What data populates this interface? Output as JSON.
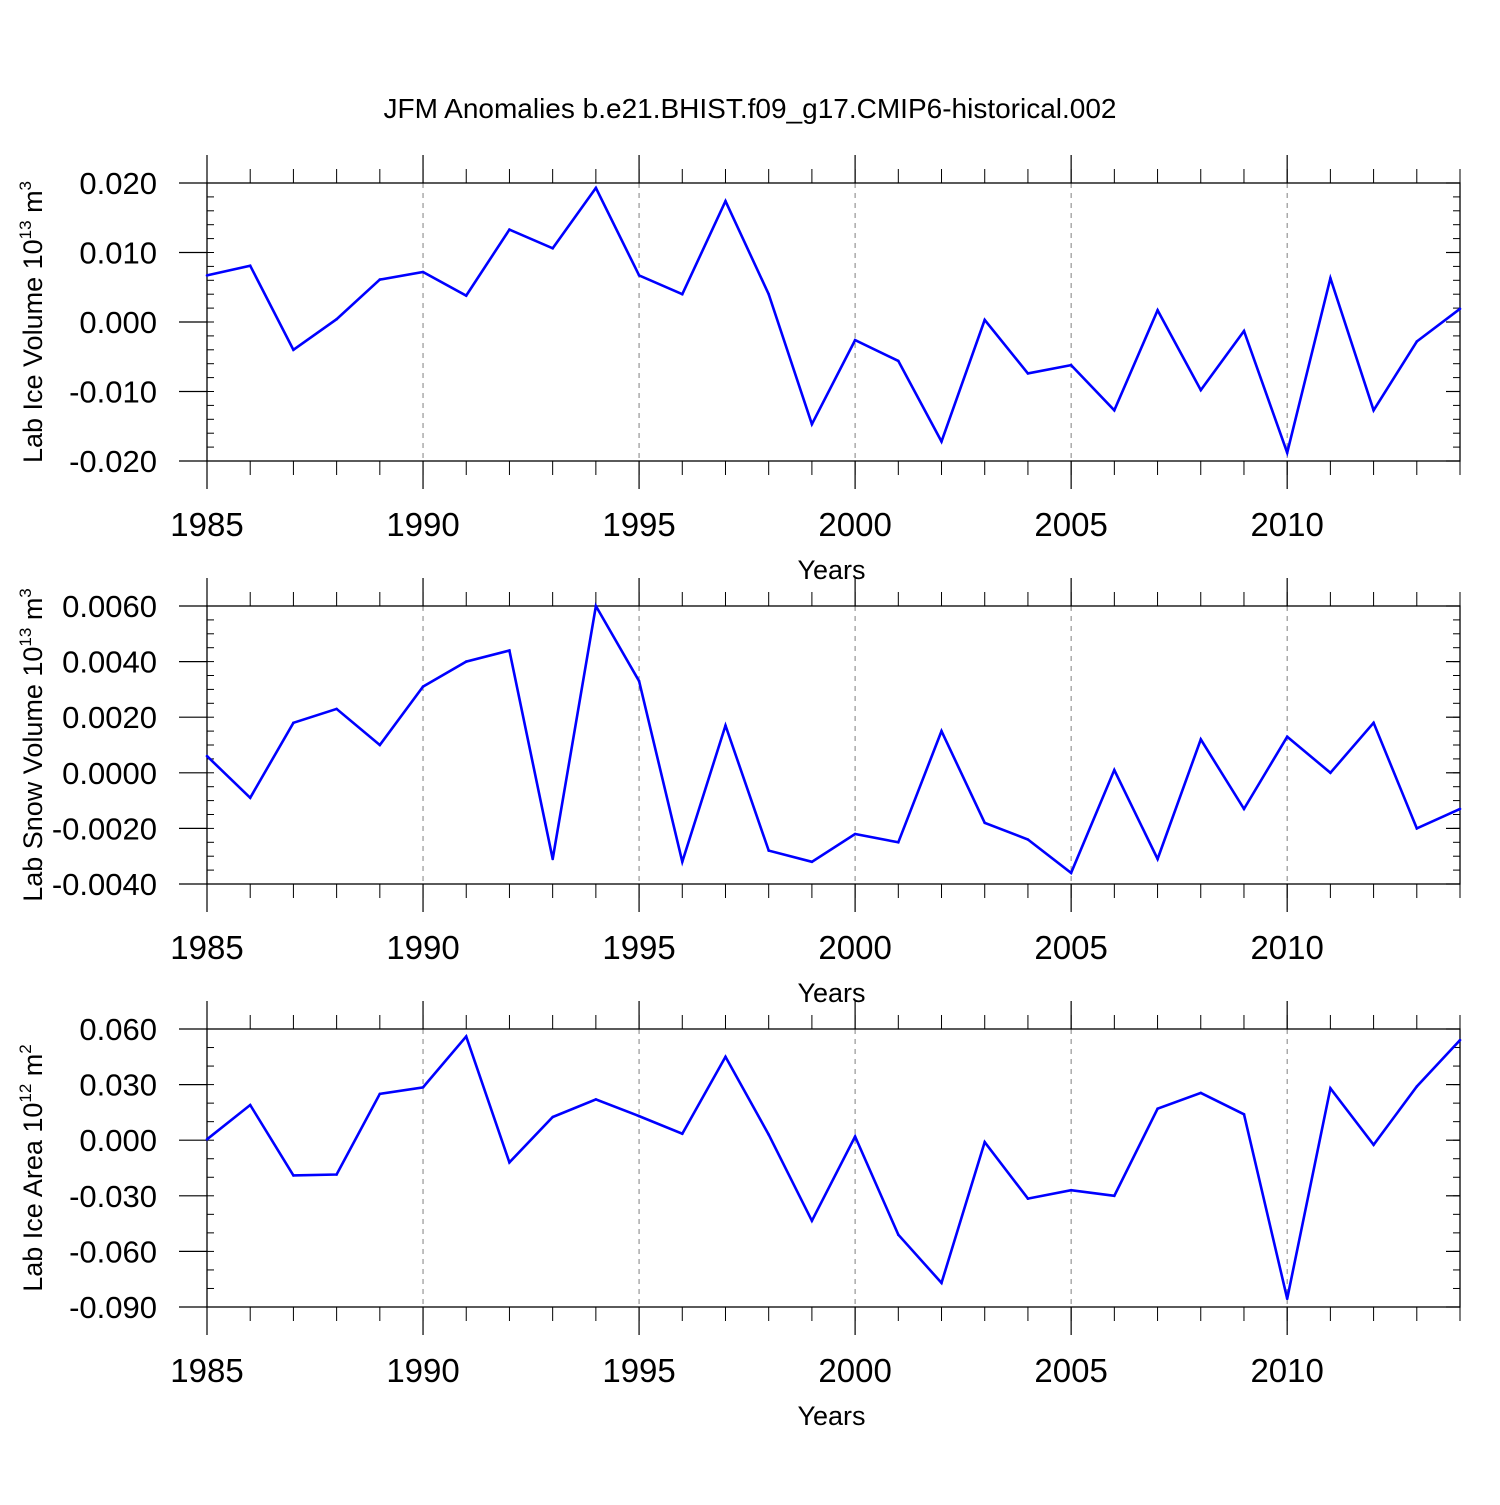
{
  "title": "JFM Anomalies b.e21.BHIST.f09_g17.CMIP6-historical.002",
  "colors": {
    "line": "#0000ff",
    "axis": "#000000",
    "grid": "#808080"
  },
  "chart_data": [
    {
      "type": "line",
      "xlabel": "Years",
      "ylabel": "Lab Ice Volume 10",
      "ylabel_sup": "13",
      "ylabel_unit": " m",
      "ylabel_unit_sup": "3",
      "xlim": [
        1985,
        2014
      ],
      "ylim": [
        -0.02,
        0.02
      ],
      "x_ticks": [
        1985,
        1990,
        1995,
        2000,
        2005,
        2010
      ],
      "x_tick_labels": [
        "1985",
        "1990",
        "1995",
        "2000",
        "2005",
        "2010"
      ],
      "y_ticks": [
        0.02,
        0.01,
        0.0,
        -0.01,
        -0.02
      ],
      "y_tick_labels": [
        "0.020",
        "0.010",
        "0.000",
        "-0.010",
        "-0.020"
      ],
      "y_minor_step": 0.002,
      "grid_x": [
        1990,
        1995,
        2000,
        2005,
        2010
      ],
      "x": [
        1985,
        1986,
        1987,
        1988,
        1989,
        1990,
        1991,
        1992,
        1993,
        1994,
        1995,
        1996,
        1997,
        1998,
        1999,
        2000,
        2001,
        2002,
        2003,
        2004,
        2005,
        2006,
        2007,
        2008,
        2009,
        2010,
        2011,
        2012,
        2013,
        2014
      ],
      "values": [
        0.0067,
        0.0081,
        -0.004,
        0.0004,
        0.0061,
        0.0072,
        0.0038,
        0.0133,
        0.0106,
        0.0193,
        0.0067,
        0.004,
        0.0174,
        0.004,
        -0.0147,
        -0.0026,
        -0.0056,
        -0.0172,
        0.0003,
        -0.0074,
        -0.0062,
        -0.0127,
        0.0017,
        -0.0098,
        -0.0013,
        -0.0188,
        0.0063,
        -0.0127,
        -0.0028,
        0.0019
      ]
    },
    {
      "type": "line",
      "xlabel": "Years",
      "ylabel": "Lab Snow Volume 10",
      "ylabel_sup": "13",
      "ylabel_unit": " m",
      "ylabel_unit_sup": "3",
      "xlim": [
        1985,
        2014
      ],
      "ylim": [
        -0.004,
        0.006
      ],
      "x_ticks": [
        1985,
        1990,
        1995,
        2000,
        2005,
        2010
      ],
      "x_tick_labels": [
        "1985",
        "1990",
        "1995",
        "2000",
        "2005",
        "2010"
      ],
      "y_ticks": [
        0.006,
        0.004,
        0.002,
        0.0,
        -0.002,
        -0.004
      ],
      "y_tick_labels": [
        "0.0060",
        "0.0040",
        "0.0020",
        "0.0000",
        "-0.0020",
        "-0.0040"
      ],
      "y_minor_step": 0.0005,
      "grid_x": [
        1990,
        1995,
        2000,
        2005,
        2010
      ],
      "x": [
        1985,
        1986,
        1987,
        1988,
        1989,
        1990,
        1991,
        1992,
        1993,
        1994,
        1995,
        1996,
        1997,
        1998,
        1999,
        2000,
        2001,
        2002,
        2003,
        2004,
        2005,
        2006,
        2007,
        2008,
        2009,
        2010,
        2011,
        2012,
        2013,
        2014
      ],
      "values": [
        0.0006,
        -0.0009,
        0.0018,
        0.0023,
        0.001,
        0.0031,
        0.004,
        0.0044,
        -0.0031,
        0.006,
        0.0033,
        -0.0032,
        0.0017,
        -0.0028,
        -0.0032,
        -0.0022,
        -0.0025,
        0.0015,
        -0.0018,
        -0.0024,
        -0.0036,
        0.0001,
        -0.0031,
        0.0012,
        -0.0013,
        0.0013,
        0.0,
        0.0018,
        -0.002,
        -0.0013
      ]
    },
    {
      "type": "line",
      "xlabel": "Years",
      "ylabel": "Lab Ice Area 10",
      "ylabel_sup": "12",
      "ylabel_unit": " m",
      "ylabel_unit_sup": "2",
      "xlim": [
        1985,
        2014
      ],
      "ylim": [
        -0.09,
        0.06
      ],
      "x_ticks": [
        1985,
        1990,
        1995,
        2000,
        2005,
        2010
      ],
      "x_tick_labels": [
        "1985",
        "1990",
        "1995",
        "2000",
        "2005",
        "2010"
      ],
      "y_ticks": [
        0.06,
        0.03,
        0.0,
        -0.03,
        -0.06,
        -0.09
      ],
      "y_tick_labels": [
        "0.060",
        "0.030",
        "0.000",
        "-0.030",
        "-0.060",
        "-0.090"
      ],
      "y_minor_step": 0.01,
      "grid_x": [
        1990,
        1995,
        2000,
        2005,
        2010
      ],
      "x": [
        1985,
        1986,
        1987,
        1988,
        1989,
        1990,
        1991,
        1992,
        1993,
        1994,
        1995,
        1996,
        1997,
        1998,
        1999,
        2000,
        2001,
        2002,
        2003,
        2004,
        2005,
        2006,
        2007,
        2008,
        2009,
        2010,
        2011,
        2012,
        2013,
        2014
      ],
      "values": [
        0.0005,
        0.019,
        -0.019,
        -0.0185,
        0.025,
        0.0285,
        0.056,
        -0.012,
        0.0125,
        0.022,
        0.013,
        0.0035,
        0.045,
        0.003,
        -0.0435,
        0.002,
        -0.051,
        -0.077,
        -0.001,
        -0.0315,
        -0.027,
        -0.03,
        0.017,
        0.0255,
        0.014,
        -0.0855,
        0.028,
        -0.0025,
        0.029,
        0.054
      ]
    }
  ]
}
